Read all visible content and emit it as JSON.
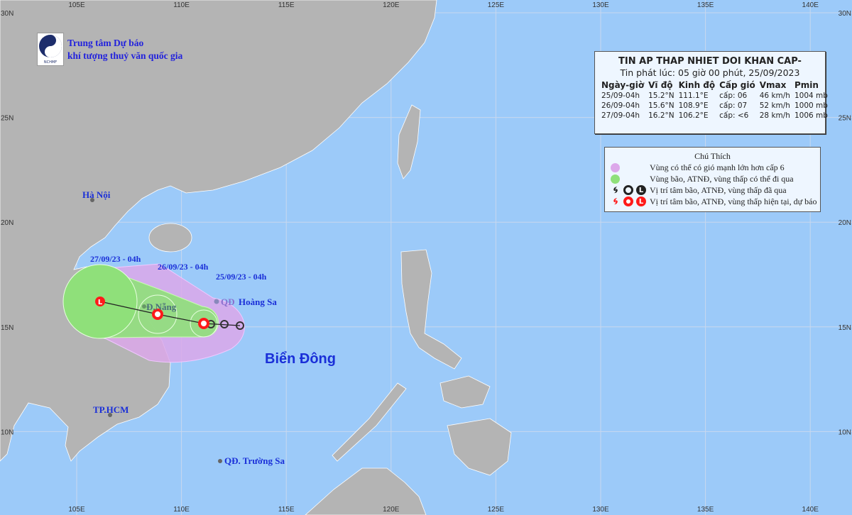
{
  "colors": {
    "sea": "#9ccaf9",
    "land": "#b4b4b4",
    "wind_zone": "#dca8ea",
    "storm_zone": "#8fe07a",
    "current": "#ff1a1a",
    "past": "#222222"
  },
  "axes": {
    "lon_ticks": [
      "105E",
      "110E",
      "115E",
      "120E",
      "125E",
      "130E",
      "135E",
      "140E"
    ],
    "lat_ticks": [
      "30N",
      "25N",
      "20N",
      "15N",
      "10N"
    ]
  },
  "logo": {
    "abbr": "NCHMF",
    "line1": "Trung tâm Dự báo",
    "line2": "khí tượng thuỷ văn quốc gia"
  },
  "places": {
    "hanoi": "Hà Nội",
    "danang": "Đ.Nẵng",
    "hoangsa_prefix": "QĐ",
    "hoangsa": "Hoàng Sa",
    "hcm": "TP.HCM",
    "truongsa": "QĐ. Trường Sa",
    "sea": "Biển Đông"
  },
  "track": [
    {
      "label": "25/09/23 - 04h",
      "lat": 15.2,
      "lon": 111.1,
      "type": "storm-current"
    },
    {
      "label": "26/09/23 - 04h",
      "lat": 15.6,
      "lon": 108.9,
      "type": "storm-forecast"
    },
    {
      "label": "27/09/23 - 04h",
      "lat": 16.2,
      "lon": 106.2,
      "type": "low-forecast"
    }
  ],
  "bulletin": {
    "title": "TIN AP THAP NHIET DOI KHAN CAP-",
    "issued": "Tin phát lúc: 05 giờ 00 phút, 25/09/2023",
    "headers": [
      "Ngày-giờ",
      "Vĩ độ",
      "Kinh độ",
      "Cấp gió",
      "Vmax",
      "Pmin"
    ],
    "rows": [
      [
        "25/09-04h",
        "15.2°N",
        "111.1°E",
        "cấp: 06",
        "46 km/h",
        "1004 mb"
      ],
      [
        "26/09-04h",
        "15.6°N",
        "108.9°E",
        "cấp: 07",
        "52 km/h",
        "1000 mb"
      ],
      [
        "27/09-04h",
        "16.2°N",
        "106.2°E",
        "cấp: <6",
        "28 km/h",
        "1006 mb"
      ]
    ]
  },
  "legend": {
    "title": "Chú Thích",
    "items": [
      {
        "icon": "pink-zone",
        "label": "Vùng có thể có gió mạnh lớn hơn cấp 6"
      },
      {
        "icon": "green-zone",
        "label": "Vùng bão, ATNĐ, vùng thấp có thể đi qua"
      },
      {
        "icon": "past-positions",
        "label": "Vị trí tâm bão, ATNĐ, vùng thấp đã qua"
      },
      {
        "icon": "current-forecast-positions",
        "label": "Vị trí tâm bão, ATNĐ, vùng thấp hiện tại, dự báo"
      }
    ],
    "low_symbol": "L"
  }
}
